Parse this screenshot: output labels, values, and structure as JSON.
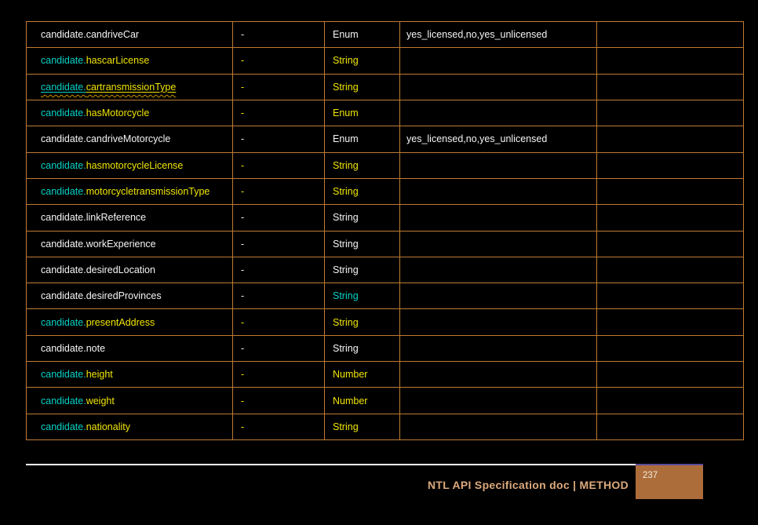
{
  "colors": {
    "background": "#000000",
    "table_border": "#BF7B33",
    "text_white": "#F5F5F5",
    "text_cyan": "#00D2C6",
    "text_yellow": "#F0E500",
    "link_wave": "#C79500",
    "footer_title": "#DCA97C",
    "page_box_fill": "#AD6D3B",
    "page_box_accent": "#5B4A9B",
    "page_number_text": "#F2E9DF"
  },
  "table": {
    "rows": [
      {
        "prefix": "candidate.",
        "name": "candriveCar",
        "default": "-",
        "type": "Enum",
        "values": "yes_licensed,no,yes_unlicensed",
        "notes": "",
        "palette": "plain",
        "linked": false,
        "type_palette": ""
      },
      {
        "prefix": "candidate.",
        "name": "hascarLicense",
        "default": "-",
        "type": "String",
        "values": "",
        "notes": "",
        "palette": "accent",
        "linked": false,
        "type_palette": ""
      },
      {
        "prefix": "candidate.",
        "name": "cartransmissionType",
        "default": "-",
        "type": "String",
        "values": "",
        "notes": "",
        "palette": "accent",
        "linked": true,
        "type_palette": ""
      },
      {
        "prefix": "candidate.",
        "name": "hasMotorcycle",
        "default": "-",
        "type": "Enum",
        "values": "",
        "notes": "",
        "palette": "accent",
        "linked": false,
        "type_palette": ""
      },
      {
        "prefix": "candidate.",
        "name": "candriveMotorcycle",
        "default": "-",
        "type": "Enum",
        "values": "yes_licensed,no,yes_unlicensed",
        "notes": "",
        "palette": "plain",
        "linked": false,
        "type_palette": ""
      },
      {
        "prefix": "candidate.",
        "name": "hasmotorcycleLicense",
        "default": "-",
        "type": "String",
        "values": "",
        "notes": "",
        "palette": "accent",
        "linked": false,
        "type_palette": ""
      },
      {
        "prefix": "candidate.",
        "name": "motorcycletransmissionType",
        "default": "-",
        "type": "String",
        "values": "",
        "notes": "",
        "palette": "accent",
        "linked": false,
        "type_palette": ""
      },
      {
        "prefix": "candidate.",
        "name": "linkReference",
        "default": "-",
        "type": "String",
        "values": "",
        "notes": "",
        "palette": "plain",
        "linked": false,
        "type_palette": ""
      },
      {
        "prefix": "candidate.",
        "name": "workExperience",
        "default": "-",
        "type": "String",
        "values": "",
        "notes": "",
        "palette": "plain",
        "linked": false,
        "type_palette": ""
      },
      {
        "prefix": "candidate.",
        "name": "desiredLocation",
        "default": "-",
        "type": "String",
        "values": "",
        "notes": "",
        "palette": "plain",
        "linked": false,
        "type_palette": ""
      },
      {
        "prefix": "candidate.",
        "name": "desiredProvinces",
        "default": "-",
        "type": "String",
        "values": "",
        "notes": "",
        "palette": "plain",
        "linked": false,
        "type_palette": "cyan"
      },
      {
        "prefix": "candidate.",
        "name": "presentAddress",
        "default": "-",
        "type": "String",
        "values": "",
        "notes": "",
        "palette": "accent",
        "linked": false,
        "type_palette": ""
      },
      {
        "prefix": "candidate.",
        "name": "note",
        "default": "-",
        "type": "String",
        "values": "",
        "notes": "",
        "palette": "plain",
        "linked": false,
        "type_palette": ""
      },
      {
        "prefix": "candidate.",
        "name": "height",
        "default": "-",
        "type": "Number",
        "values": "",
        "notes": "",
        "palette": "accent",
        "linked": false,
        "type_palette": ""
      },
      {
        "prefix": "candidate.",
        "name": "weight",
        "default": "-",
        "type": "Number",
        "values": "",
        "notes": "",
        "palette": "accent",
        "linked": false,
        "type_palette": ""
      },
      {
        "prefix": "candidate.",
        "name": "nationality",
        "default": "-",
        "type": "String",
        "values": "",
        "notes": "",
        "palette": "accent",
        "linked": false,
        "type_palette": ""
      }
    ]
  },
  "footer": {
    "title": "NTL API Specification doc | METHOD",
    "page_number": "237"
  }
}
